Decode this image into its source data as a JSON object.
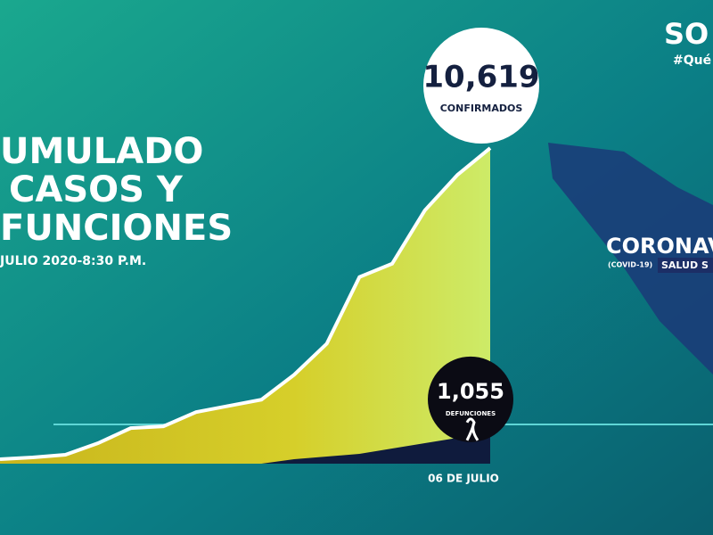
{
  "chart_data": {
    "type": "area",
    "title_lines": [
      "UMULADO",
      "CASOS Y",
      "FUNCIONES"
    ],
    "subtitle": "JULIO 2020-8:30 P.M.",
    "logo": "SO",
    "hashtag": "#Qué",
    "banner": "CORONAV",
    "banner_tag": "(COVID-19)",
    "banner_sub": "SALUD S",
    "categories": [
      null,
      null,
      null,
      null,
      null,
      null,
      null,
      null,
      null,
      null,
      null,
      null,
      null,
      null,
      null,
      "06 DE JULIO"
    ],
    "ylim": [
      0,
      12000
    ],
    "series": [
      {
        "name": "CONFIRMADOS",
        "color": "#d8d62a",
        "values": [
          150,
          209,
          299,
          688,
          1196,
          1256,
          1734,
          1944,
          2153,
          2990,
          4037,
          6279,
          6728,
          8522,
          9718,
          10619
        ],
        "value_labels": [
          null,
          null,
          null,
          null,
          null,
          null,
          null,
          null,
          null,
          null,
          null,
          null,
          null,
          null,
          null,
          "10,619"
        ]
      },
      {
        "name": "DEFUNCIONES",
        "color": "#0f1b3d",
        "values": [
          0,
          0,
          0,
          0,
          0,
          0,
          0,
          0,
          0,
          150,
          240,
          330,
          510,
          690,
          870,
          1055
        ],
        "value_labels": [
          null,
          null,
          null,
          null,
          null,
          null,
          null,
          null,
          null,
          null,
          null,
          null,
          null,
          null,
          null,
          "1,055"
        ]
      }
    ]
  }
}
